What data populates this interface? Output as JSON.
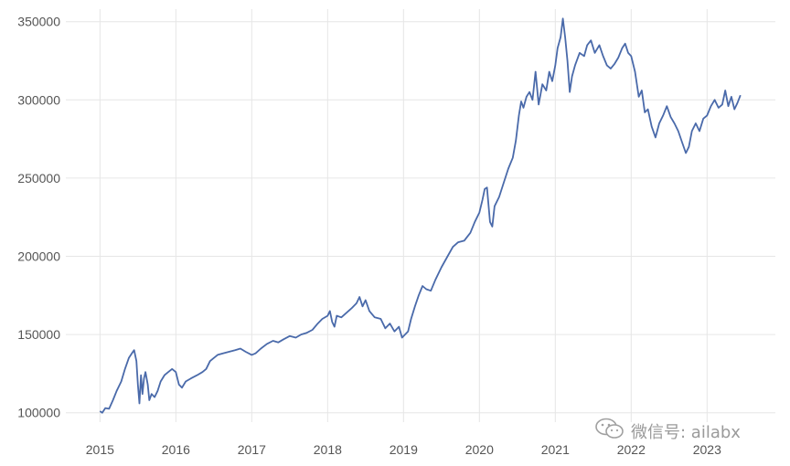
{
  "chart_data": {
    "type": "line",
    "title": "",
    "xlabel": "",
    "ylabel": "",
    "xlim": [
      2014.55,
      2023.9
    ],
    "ylim": [
      94000,
      358000
    ],
    "grid": true,
    "line_color": "#4a6aaa",
    "x_ticks": [
      {
        "value": 2015,
        "label": "2015"
      },
      {
        "value": 2016,
        "label": "2016"
      },
      {
        "value": 2017,
        "label": "2017"
      },
      {
        "value": 2018,
        "label": "2018"
      },
      {
        "value": 2019,
        "label": "2019"
      },
      {
        "value": 2020,
        "label": "2020"
      },
      {
        "value": 2021,
        "label": "2021"
      },
      {
        "value": 2022,
        "label": "2022"
      },
      {
        "value": 2023,
        "label": "2023"
      }
    ],
    "y_ticks": [
      {
        "value": 100000,
        "label": "100000"
      },
      {
        "value": 150000,
        "label": "150000"
      },
      {
        "value": 200000,
        "label": "200000"
      },
      {
        "value": 250000,
        "label": "250000"
      },
      {
        "value": 300000,
        "label": "300000"
      },
      {
        "value": 350000,
        "label": "350000"
      }
    ],
    "series": [
      {
        "points": [
          [
            2015.0,
            101000
          ],
          [
            2015.03,
            100000
          ],
          [
            2015.07,
            103000
          ],
          [
            2015.12,
            102500
          ],
          [
            2015.17,
            108000
          ],
          [
            2015.22,
            114000
          ],
          [
            2015.28,
            120000
          ],
          [
            2015.33,
            128000
          ],
          [
            2015.38,
            135000
          ],
          [
            2015.42,
            138000
          ],
          [
            2015.45,
            140000
          ],
          [
            2015.48,
            133000
          ],
          [
            2015.5,
            118000
          ],
          [
            2015.52,
            106000
          ],
          [
            2015.54,
            124000
          ],
          [
            2015.56,
            112000
          ],
          [
            2015.58,
            122000
          ],
          [
            2015.6,
            126000
          ],
          [
            2015.63,
            118000
          ],
          [
            2015.65,
            108000
          ],
          [
            2015.68,
            112000
          ],
          [
            2015.72,
            110000
          ],
          [
            2015.76,
            114000
          ],
          [
            2015.8,
            120000
          ],
          [
            2015.85,
            124000
          ],
          [
            2015.9,
            126000
          ],
          [
            2015.95,
            128000
          ],
          [
            2016.0,
            126000
          ],
          [
            2016.04,
            118000
          ],
          [
            2016.08,
            116000
          ],
          [
            2016.13,
            120000
          ],
          [
            2016.2,
            122000
          ],
          [
            2016.28,
            124000
          ],
          [
            2016.35,
            126000
          ],
          [
            2016.4,
            128000
          ],
          [
            2016.45,
            133000
          ],
          [
            2016.5,
            135000
          ],
          [
            2016.55,
            137000
          ],
          [
            2016.62,
            138000
          ],
          [
            2016.7,
            139000
          ],
          [
            2016.78,
            140000
          ],
          [
            2016.85,
            141000
          ],
          [
            2016.92,
            139000
          ],
          [
            2017.0,
            137000
          ],
          [
            2017.05,
            138000
          ],
          [
            2017.12,
            141000
          ],
          [
            2017.2,
            144000
          ],
          [
            2017.28,
            146000
          ],
          [
            2017.35,
            145000
          ],
          [
            2017.42,
            147000
          ],
          [
            2017.5,
            149000
          ],
          [
            2017.58,
            148000
          ],
          [
            2017.65,
            150000
          ],
          [
            2017.72,
            151000
          ],
          [
            2017.8,
            153000
          ],
          [
            2017.87,
            157000
          ],
          [
            2017.93,
            160000
          ],
          [
            2018.0,
            162000
          ],
          [
            2018.03,
            165000
          ],
          [
            2018.06,
            158000
          ],
          [
            2018.09,
            155000
          ],
          [
            2018.12,
            162000
          ],
          [
            2018.18,
            161000
          ],
          [
            2018.25,
            164000
          ],
          [
            2018.32,
            167000
          ],
          [
            2018.38,
            170000
          ],
          [
            2018.42,
            174000
          ],
          [
            2018.46,
            168000
          ],
          [
            2018.5,
            172000
          ],
          [
            2018.55,
            165000
          ],
          [
            2018.62,
            161000
          ],
          [
            2018.7,
            160000
          ],
          [
            2018.76,
            154000
          ],
          [
            2018.82,
            157000
          ],
          [
            2018.88,
            152000
          ],
          [
            2018.94,
            155000
          ],
          [
            2018.98,
            148000
          ],
          [
            2019.02,
            150000
          ],
          [
            2019.06,
            152000
          ],
          [
            2019.1,
            160000
          ],
          [
            2019.15,
            168000
          ],
          [
            2019.2,
            175000
          ],
          [
            2019.25,
            181000
          ],
          [
            2019.3,
            179000
          ],
          [
            2019.36,
            178000
          ],
          [
            2019.42,
            185000
          ],
          [
            2019.5,
            193000
          ],
          [
            2019.58,
            200000
          ],
          [
            2019.65,
            206000
          ],
          [
            2019.72,
            209000
          ],
          [
            2019.8,
            210000
          ],
          [
            2019.88,
            215000
          ],
          [
            2019.94,
            222000
          ],
          [
            2020.0,
            228000
          ],
          [
            2020.04,
            236000
          ],
          [
            2020.07,
            243000
          ],
          [
            2020.1,
            244000
          ],
          [
            2020.14,
            222000
          ],
          [
            2020.17,
            219000
          ],
          [
            2020.2,
            232000
          ],
          [
            2020.26,
            238000
          ],
          [
            2020.32,
            247000
          ],
          [
            2020.38,
            256000
          ],
          [
            2020.44,
            263000
          ],
          [
            2020.48,
            274000
          ],
          [
            2020.52,
            290000
          ],
          [
            2020.55,
            299000
          ],
          [
            2020.58,
            295000
          ],
          [
            2020.62,
            302000
          ],
          [
            2020.66,
            305000
          ],
          [
            2020.7,
            300000
          ],
          [
            2020.74,
            318000
          ],
          [
            2020.78,
            297000
          ],
          [
            2020.83,
            310000
          ],
          [
            2020.88,
            306000
          ],
          [
            2020.92,
            318000
          ],
          [
            2020.96,
            312000
          ],
          [
            2021.0,
            322000
          ],
          [
            2021.03,
            333000
          ],
          [
            2021.07,
            340000
          ],
          [
            2021.1,
            352000
          ],
          [
            2021.13,
            340000
          ],
          [
            2021.16,
            325000
          ],
          [
            2021.19,
            305000
          ],
          [
            2021.22,
            315000
          ],
          [
            2021.26,
            322000
          ],
          [
            2021.32,
            330000
          ],
          [
            2021.38,
            328000
          ],
          [
            2021.42,
            335000
          ],
          [
            2021.47,
            338000
          ],
          [
            2021.52,
            330000
          ],
          [
            2021.58,
            335000
          ],
          [
            2021.63,
            328000
          ],
          [
            2021.68,
            322000
          ],
          [
            2021.73,
            320000
          ],
          [
            2021.78,
            323000
          ],
          [
            2021.83,
            327000
          ],
          [
            2021.88,
            333000
          ],
          [
            2021.92,
            336000
          ],
          [
            2021.96,
            330000
          ],
          [
            2022.0,
            328000
          ],
          [
            2022.05,
            318000
          ],
          [
            2022.1,
            302000
          ],
          [
            2022.14,
            306000
          ],
          [
            2022.18,
            292000
          ],
          [
            2022.22,
            294000
          ],
          [
            2022.27,
            283000
          ],
          [
            2022.32,
            276000
          ],
          [
            2022.37,
            285000
          ],
          [
            2022.42,
            290000
          ],
          [
            2022.47,
            296000
          ],
          [
            2022.52,
            289000
          ],
          [
            2022.57,
            285000
          ],
          [
            2022.62,
            280000
          ],
          [
            2022.67,
            273000
          ],
          [
            2022.72,
            266000
          ],
          [
            2022.76,
            270000
          ],
          [
            2022.8,
            280000
          ],
          [
            2022.85,
            285000
          ],
          [
            2022.9,
            280000
          ],
          [
            2022.95,
            288000
          ],
          [
            2023.0,
            290000
          ],
          [
            2023.05,
            296000
          ],
          [
            2023.1,
            300000
          ],
          [
            2023.15,
            295000
          ],
          [
            2023.2,
            297000
          ],
          [
            2023.24,
            306000
          ],
          [
            2023.28,
            296000
          ],
          [
            2023.32,
            302000
          ],
          [
            2023.36,
            294000
          ],
          [
            2023.4,
            298000
          ],
          [
            2023.44,
            303000
          ]
        ]
      }
    ]
  },
  "watermark": {
    "icon": "wechat-icon",
    "text": "微信号: ailabx"
  }
}
